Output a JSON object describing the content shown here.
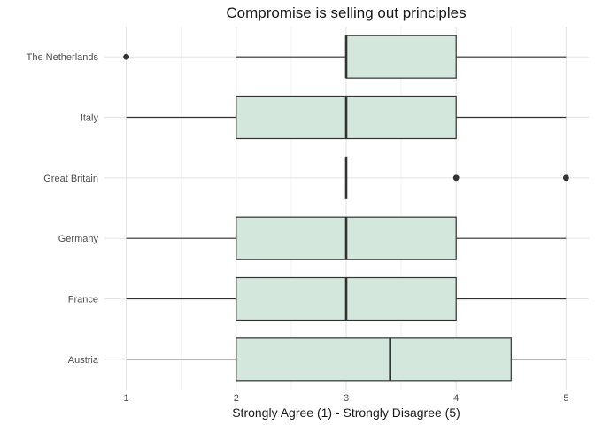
{
  "chart_data": {
    "type": "boxplot",
    "orientation": "horizontal",
    "title": "Compromise is selling out principles",
    "xlabel": "Strongly Agree (1) - Strongly Disagree (5)",
    "ylabel": "",
    "xlim": [
      1,
      5
    ],
    "x_ticks": [
      1,
      2,
      3,
      4,
      5
    ],
    "grid": true,
    "box_color": "#d4e7dc",
    "line_color": "#333333",
    "categories": [
      "The Netherlands",
      "Italy",
      "Great Britain",
      "Germany",
      "France",
      "Austria"
    ],
    "boxes": [
      {
        "category": "The Netherlands",
        "whisker_low": 2,
        "q1": 3,
        "median": 3,
        "q3": 4,
        "whisker_high": 5,
        "outliers": [
          1
        ]
      },
      {
        "category": "Italy",
        "whisker_low": 1,
        "q1": 2,
        "median": 3,
        "q3": 4,
        "whisker_high": 5,
        "outliers": []
      },
      {
        "category": "Great Britain",
        "whisker_low": 3,
        "q1": 3,
        "median": 3,
        "q3": 3,
        "whisker_high": 3,
        "outliers": [
          4,
          5
        ]
      },
      {
        "category": "Germany",
        "whisker_low": 1,
        "q1": 2,
        "median": 3,
        "q3": 4,
        "whisker_high": 5,
        "outliers": []
      },
      {
        "category": "France",
        "whisker_low": 1,
        "q1": 2,
        "median": 3,
        "q3": 4,
        "whisker_high": 5,
        "outliers": []
      },
      {
        "category": "Austria",
        "whisker_low": 1,
        "q1": 2,
        "median": 3.4,
        "q3": 4.5,
        "whisker_high": 5,
        "outliers": []
      }
    ]
  }
}
